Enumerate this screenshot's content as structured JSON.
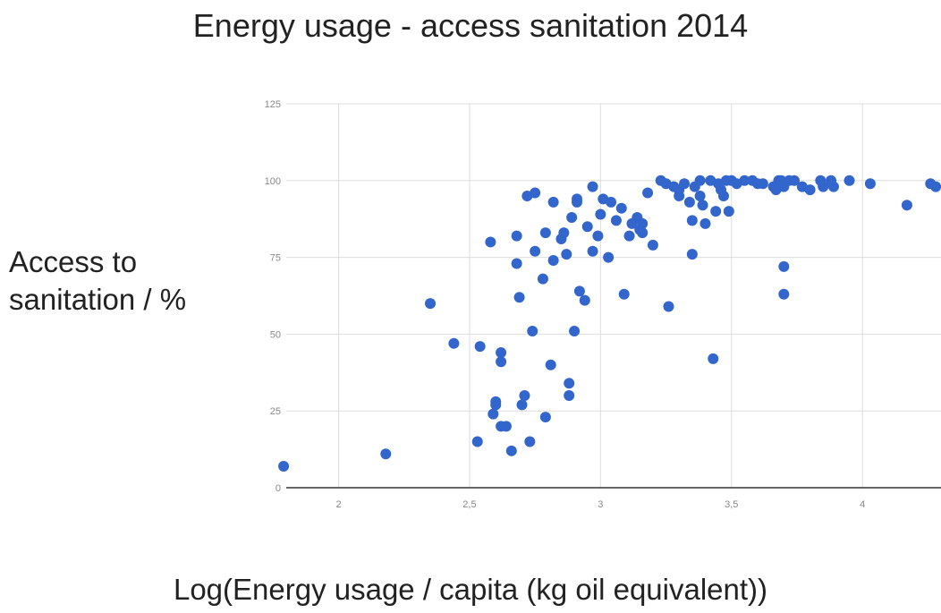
{
  "chart_data": {
    "type": "scatter",
    "title": "Energy usage - access sanitation 2014",
    "xlabel": "Log(Energy usage / capita (kg oil equivalent))",
    "ylabel": "Access to\nsanitation / %",
    "xlim": [
      1.8,
      4.3
    ],
    "ylim": [
      0,
      125
    ],
    "xticks": [
      2,
      2.5,
      3,
      3.5,
      4
    ],
    "xtick_labels": [
      "2",
      "2,5",
      "3",
      "3,5",
      "4"
    ],
    "yticks": [
      0,
      25,
      50,
      75,
      100,
      125
    ],
    "ytick_labels": [
      "0",
      "25",
      "50",
      "75",
      "100",
      "125"
    ],
    "grid": true,
    "color": "#3366cc",
    "series": [
      {
        "points": [
          [
            1.79,
            7
          ],
          [
            2.18,
            11
          ],
          [
            2.35,
            60
          ],
          [
            2.44,
            47
          ],
          [
            2.53,
            15
          ],
          [
            2.54,
            46
          ],
          [
            2.58,
            80
          ],
          [
            2.59,
            24
          ],
          [
            2.6,
            28
          ],
          [
            2.6,
            27
          ],
          [
            2.62,
            44
          ],
          [
            2.62,
            41
          ],
          [
            2.62,
            20
          ],
          [
            2.64,
            20
          ],
          [
            2.66,
            12
          ],
          [
            2.68,
            82
          ],
          [
            2.68,
            73
          ],
          [
            2.69,
            62
          ],
          [
            2.7,
            27
          ],
          [
            2.71,
            30
          ],
          [
            2.72,
            95
          ],
          [
            2.73,
            15
          ],
          [
            2.74,
            51
          ],
          [
            2.75,
            96
          ],
          [
            2.75,
            77
          ],
          [
            2.78,
            68
          ],
          [
            2.79,
            83
          ],
          [
            2.79,
            23
          ],
          [
            2.81,
            40
          ],
          [
            2.82,
            74
          ],
          [
            2.82,
            93
          ],
          [
            2.85,
            81
          ],
          [
            2.86,
            83
          ],
          [
            2.87,
            76
          ],
          [
            2.88,
            34
          ],
          [
            2.88,
            30
          ],
          [
            2.89,
            88
          ],
          [
            2.9,
            51
          ],
          [
            2.91,
            93
          ],
          [
            2.91,
            94
          ],
          [
            2.92,
            64
          ],
          [
            2.94,
            61
          ],
          [
            2.95,
            85
          ],
          [
            2.97,
            98
          ],
          [
            2.97,
            77
          ],
          [
            2.99,
            82
          ],
          [
            3.0,
            89
          ],
          [
            3.01,
            94
          ],
          [
            3.03,
            75
          ],
          [
            3.04,
            93
          ],
          [
            3.06,
            87
          ],
          [
            3.08,
            91
          ],
          [
            3.09,
            63
          ],
          [
            3.11,
            82
          ],
          [
            3.12,
            86
          ],
          [
            3.14,
            88
          ],
          [
            3.15,
            84
          ],
          [
            3.16,
            86
          ],
          [
            3.16,
            83
          ],
          [
            3.18,
            96
          ],
          [
            3.2,
            79
          ],
          [
            3.23,
            100
          ],
          [
            3.25,
            99
          ],
          [
            3.26,
            59
          ],
          [
            3.28,
            98
          ],
          [
            3.3,
            95
          ],
          [
            3.3,
            97
          ],
          [
            3.32,
            99
          ],
          [
            3.34,
            93
          ],
          [
            3.35,
            87
          ],
          [
            3.35,
            76
          ],
          [
            3.36,
            98
          ],
          [
            3.38,
            100
          ],
          [
            3.38,
            95
          ],
          [
            3.39,
            92
          ],
          [
            3.4,
            86
          ],
          [
            3.42,
            100
          ],
          [
            3.43,
            42
          ],
          [
            3.44,
            90
          ],
          [
            3.45,
            99
          ],
          [
            3.46,
            97
          ],
          [
            3.47,
            95
          ],
          [
            3.48,
            100
          ],
          [
            3.49,
            90
          ],
          [
            3.5,
            100
          ],
          [
            3.52,
            99
          ],
          [
            3.55,
            100
          ],
          [
            3.58,
            100
          ],
          [
            3.6,
            99
          ],
          [
            3.62,
            99
          ],
          [
            3.66,
            98
          ],
          [
            3.67,
            97
          ],
          [
            3.68,
            100
          ],
          [
            3.69,
            100
          ],
          [
            3.7,
            98
          ],
          [
            3.7,
            72
          ],
          [
            3.7,
            63
          ],
          [
            3.72,
            100
          ],
          [
            3.74,
            100
          ],
          [
            3.77,
            98
          ],
          [
            3.8,
            97
          ],
          [
            3.84,
            100
          ],
          [
            3.85,
            98
          ],
          [
            3.88,
            100
          ],
          [
            3.89,
            98
          ],
          [
            3.95,
            100
          ],
          [
            4.03,
            99
          ],
          [
            4.17,
            92
          ],
          [
            4.26,
            99
          ],
          [
            4.28,
            98
          ]
        ]
      }
    ]
  }
}
